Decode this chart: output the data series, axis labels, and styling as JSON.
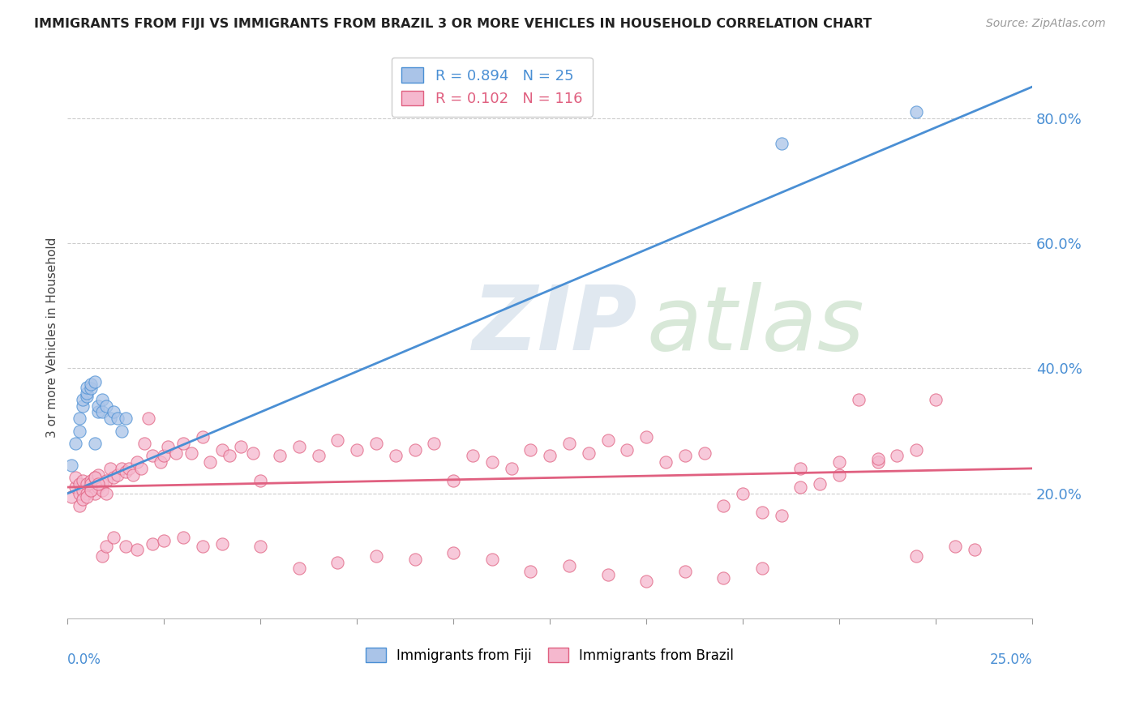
{
  "title": "IMMIGRANTS FROM FIJI VS IMMIGRANTS FROM BRAZIL 3 OR MORE VEHICLES IN HOUSEHOLD CORRELATION CHART",
  "source": "Source: ZipAtlas.com",
  "ylabel": "3 or more Vehicles in Household",
  "right_yticklabels": [
    "20.0%",
    "40.0%",
    "60.0%",
    "80.0%"
  ],
  "right_yticks": [
    0.2,
    0.4,
    0.6,
    0.8
  ],
  "fiji_R": 0.894,
  "fiji_N": 25,
  "brazil_R": 0.102,
  "brazil_N": 116,
  "fiji_color": "#aac4e8",
  "brazil_color": "#f5b8ce",
  "fiji_line_color": "#4a8fd4",
  "brazil_line_color": "#e06080",
  "xlim": [
    0.0,
    0.25
  ],
  "ylim": [
    0.0,
    0.9
  ],
  "fiji_x": [
    0.001,
    0.002,
    0.003,
    0.003,
    0.004,
    0.004,
    0.005,
    0.005,
    0.005,
    0.006,
    0.006,
    0.007,
    0.007,
    0.008,
    0.008,
    0.009,
    0.009,
    0.01,
    0.011,
    0.012,
    0.013,
    0.014,
    0.015,
    0.185,
    0.22
  ],
  "fiji_y": [
    0.245,
    0.28,
    0.3,
    0.32,
    0.34,
    0.35,
    0.355,
    0.36,
    0.37,
    0.368,
    0.375,
    0.378,
    0.28,
    0.33,
    0.34,
    0.33,
    0.35,
    0.34,
    0.32,
    0.33,
    0.32,
    0.3,
    0.32,
    0.76,
    0.81
  ],
  "brazil_x": [
    0.001,
    0.002,
    0.002,
    0.003,
    0.003,
    0.004,
    0.004,
    0.005,
    0.005,
    0.006,
    0.006,
    0.006,
    0.007,
    0.007,
    0.008,
    0.008,
    0.009,
    0.009,
    0.01,
    0.01,
    0.011,
    0.012,
    0.013,
    0.014,
    0.015,
    0.016,
    0.017,
    0.018,
    0.019,
    0.02,
    0.021,
    0.022,
    0.024,
    0.025,
    0.026,
    0.028,
    0.03,
    0.032,
    0.035,
    0.037,
    0.04,
    0.042,
    0.045,
    0.048,
    0.05,
    0.055,
    0.06,
    0.065,
    0.07,
    0.075,
    0.08,
    0.085,
    0.09,
    0.095,
    0.1,
    0.105,
    0.11,
    0.115,
    0.12,
    0.125,
    0.13,
    0.135,
    0.14,
    0.145,
    0.15,
    0.155,
    0.16,
    0.165,
    0.17,
    0.175,
    0.18,
    0.185,
    0.19,
    0.195,
    0.2,
    0.205,
    0.21,
    0.215,
    0.22,
    0.225,
    0.003,
    0.004,
    0.005,
    0.006,
    0.007,
    0.008,
    0.009,
    0.01,
    0.012,
    0.015,
    0.018,
    0.022,
    0.025,
    0.03,
    0.035,
    0.04,
    0.05,
    0.06,
    0.07,
    0.08,
    0.09,
    0.1,
    0.11,
    0.12,
    0.13,
    0.14,
    0.15,
    0.16,
    0.17,
    0.18,
    0.19,
    0.2,
    0.21,
    0.22,
    0.23,
    0.235
  ],
  "brazil_y": [
    0.195,
    0.21,
    0.225,
    0.2,
    0.215,
    0.205,
    0.22,
    0.215,
    0.2,
    0.205,
    0.22,
    0.215,
    0.225,
    0.2,
    0.23,
    0.21,
    0.215,
    0.205,
    0.22,
    0.2,
    0.24,
    0.225,
    0.23,
    0.24,
    0.235,
    0.24,
    0.23,
    0.25,
    0.24,
    0.28,
    0.32,
    0.26,
    0.25,
    0.26,
    0.275,
    0.265,
    0.28,
    0.265,
    0.29,
    0.25,
    0.27,
    0.26,
    0.275,
    0.265,
    0.22,
    0.26,
    0.275,
    0.26,
    0.285,
    0.27,
    0.28,
    0.26,
    0.27,
    0.28,
    0.22,
    0.26,
    0.25,
    0.24,
    0.27,
    0.26,
    0.28,
    0.265,
    0.285,
    0.27,
    0.29,
    0.25,
    0.26,
    0.265,
    0.18,
    0.2,
    0.17,
    0.165,
    0.21,
    0.215,
    0.23,
    0.35,
    0.25,
    0.26,
    0.27,
    0.35,
    0.18,
    0.19,
    0.195,
    0.205,
    0.225,
    0.215,
    0.1,
    0.115,
    0.13,
    0.115,
    0.11,
    0.12,
    0.125,
    0.13,
    0.115,
    0.12,
    0.115,
    0.08,
    0.09,
    0.1,
    0.095,
    0.105,
    0.095,
    0.075,
    0.085,
    0.07,
    0.06,
    0.075,
    0.065,
    0.08,
    0.24,
    0.25,
    0.255,
    0.1,
    0.115,
    0.11
  ]
}
